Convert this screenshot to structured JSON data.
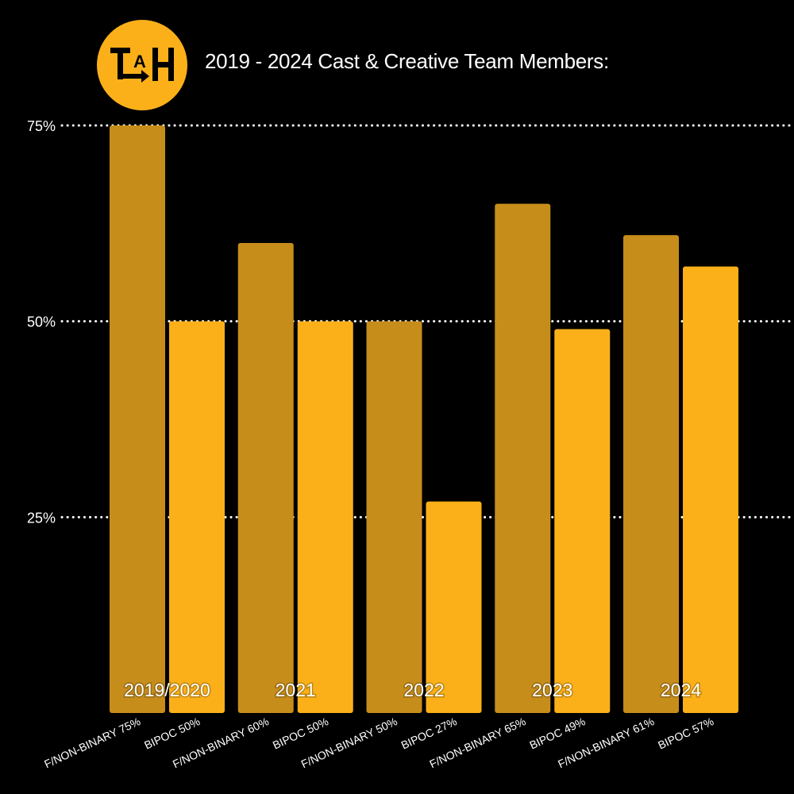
{
  "brand": {
    "logo_text": "TAH",
    "logo_color": "#fbb019"
  },
  "chart_data": {
    "type": "bar",
    "title": "2019 - 2024 Cast & Creative Team Members:",
    "categories": [
      "2019/2020",
      "2021",
      "2022",
      "2023",
      "2024"
    ],
    "series": [
      {
        "color": "#c68d1b",
        "values": [
          75,
          60,
          50,
          65,
          61
        ]
      },
      {
        "color": "#fbb019",
        "values": [
          50,
          50,
          27,
          49,
          57
        ]
      }
    ],
    "bar_labels": [
      [
        "F/NON-BINARY 75%",
        "BIPOC 50%"
      ],
      [
        "F/NON-BINARY 60%",
        "BIPOC 50%"
      ],
      [
        "F/NON-BINARY 50%",
        "BIPOC 27%"
      ],
      [
        "F/NON-BINARY 65%",
        "BIPOC 49%"
      ],
      [
        "F/NON-BINARY 61%",
        "BIPOC 57%"
      ]
    ],
    "yticks": [
      25,
      50,
      75
    ],
    "ytick_labels": [
      "25%",
      "50%",
      "75%"
    ],
    "ylim": [
      0,
      75
    ],
    "grid": "dotted",
    "background": "#000000"
  }
}
